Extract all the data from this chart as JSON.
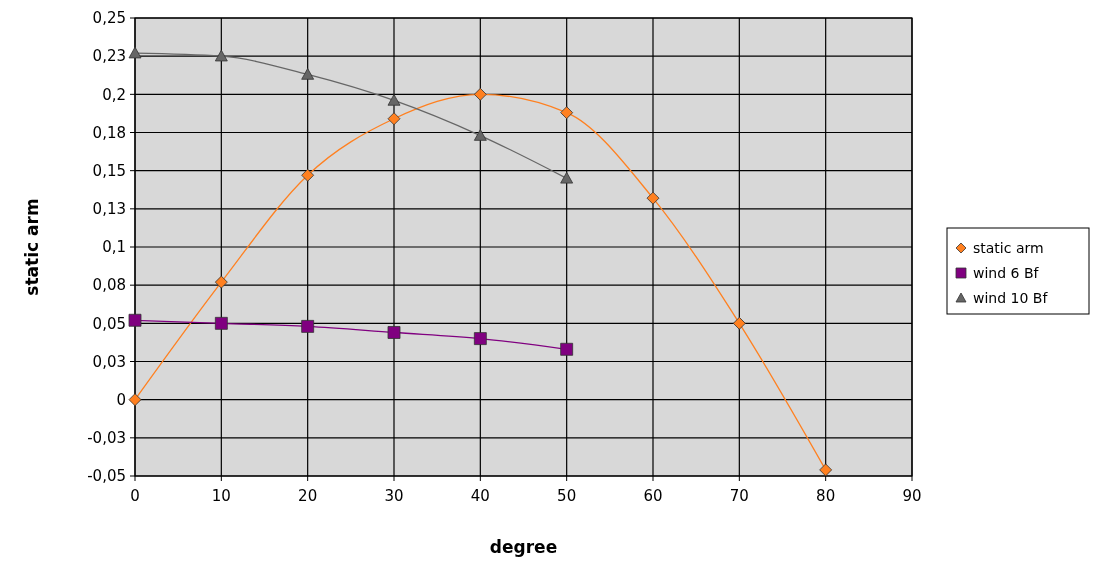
{
  "chart_data": {
    "type": "line",
    "xlabel": "degree",
    "ylabel": "static arm",
    "x": [
      0,
      10,
      20,
      30,
      40,
      50,
      60,
      70,
      80
    ],
    "series": [
      {
        "name": "static arm",
        "color": "#ff8020",
        "marker": "diamond",
        "values": [
          0,
          0.077,
          0.147,
          0.184,
          0.2,
          0.188,
          0.132,
          0.05,
          -0.046
        ]
      },
      {
        "name": "wind 6 Bf",
        "color": "#800080",
        "marker": "square",
        "x": [
          0,
          10,
          20,
          30,
          40,
          50
        ],
        "values": [
          0.052,
          0.05,
          0.048,
          0.044,
          0.04,
          0.033
        ]
      },
      {
        "name": "wind 10 Bf",
        "color": "#666666",
        "marker": "triangle",
        "x": [
          0,
          10,
          20,
          30,
          40,
          50
        ],
        "values": [
          0.227,
          0.225,
          0.213,
          0.196,
          0.173,
          0.145
        ]
      }
    ],
    "xlim": [
      0,
      90
    ],
    "xticks": [
      0,
      10,
      20,
      30,
      40,
      50,
      60,
      70,
      80,
      90
    ],
    "ylim": [
      -0.05,
      0.25
    ],
    "yticks": [
      {
        "value": -0.05,
        "label": "-0,05"
      },
      {
        "value": -0.025,
        "label": "-0,03"
      },
      {
        "value": 0,
        "label": "0"
      },
      {
        "value": 0.025,
        "label": "0,03"
      },
      {
        "value": 0.05,
        "label": "0,05"
      },
      {
        "value": 0.075,
        "label": "0,08"
      },
      {
        "value": 0.1,
        "label": "0,1"
      },
      {
        "value": 0.125,
        "label": "0,13"
      },
      {
        "value": 0.15,
        "label": "0,15"
      },
      {
        "value": 0.175,
        "label": "0,18"
      },
      {
        "value": 0.2,
        "label": "0,2"
      },
      {
        "value": 0.225,
        "label": "0,23"
      },
      {
        "value": 0.25,
        "label": "0,25"
      }
    ],
    "grid": true,
    "legend": "right"
  }
}
